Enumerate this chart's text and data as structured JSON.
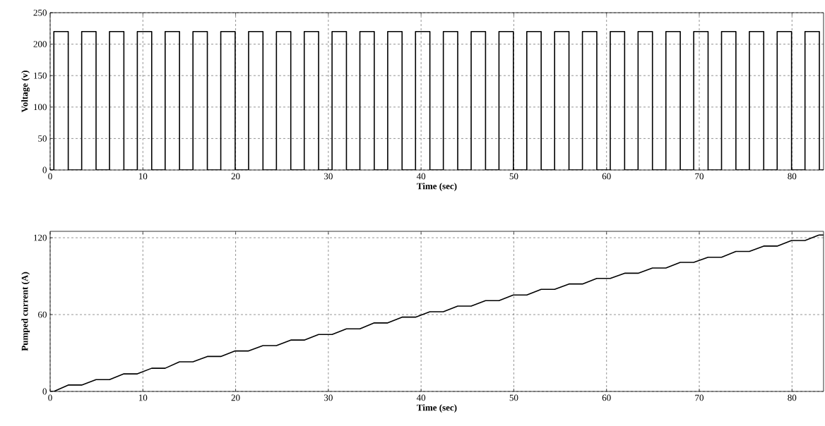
{
  "chart_data": [
    {
      "type": "line",
      "xlabel": "Time (sec)",
      "ylabel": "Voltage (v)",
      "xlim": [
        0,
        83.4
      ],
      "ylim": [
        0,
        250
      ],
      "xticks": [
        0,
        10,
        20,
        30,
        40,
        50,
        60,
        70,
        80
      ],
      "yticks": [
        0,
        50,
        100,
        150,
        200,
        250
      ],
      "grid": true,
      "series": [
        {
          "color": "#000000",
          "x": [
            0,
            0.4,
            0.4,
            1.95,
            1.95,
            3.4,
            3.4,
            4.95,
            4.95,
            6.4,
            6.4,
            7.95,
            7.95,
            9.4,
            9.4,
            10.95,
            10.95,
            12.4,
            12.4,
            13.95,
            13.95,
            15.4,
            15.4,
            16.95,
            16.95,
            18.4,
            18.4,
            19.95,
            19.95,
            21.4,
            21.4,
            22.95,
            22.95,
            24.4,
            24.4,
            25.95,
            25.95,
            27.4,
            27.4,
            28.95,
            28.95,
            30.4,
            30.4,
            31.95,
            31.95,
            33.4,
            33.4,
            34.95,
            34.95,
            36.4,
            36.4,
            37.95,
            37.95,
            39.4,
            39.4,
            40.95,
            40.95,
            42.4,
            42.4,
            43.95,
            43.95,
            45.4,
            45.4,
            46.95,
            46.95,
            48.4,
            48.4,
            49.95,
            49.95,
            51.4,
            51.4,
            52.95,
            52.95,
            54.4,
            54.4,
            55.95,
            55.95,
            57.4,
            57.4,
            58.95,
            58.95,
            60.4,
            60.4,
            61.95,
            61.95,
            63.4,
            63.4,
            64.95,
            64.95,
            66.4,
            66.4,
            67.95,
            67.95,
            69.4,
            69.4,
            70.95,
            70.95,
            72.4,
            72.4,
            73.95,
            73.95,
            75.4,
            75.4,
            76.95,
            76.95,
            78.4,
            78.4,
            79.95,
            79.95,
            81.4,
            81.4,
            82.95,
            82.95,
            83.4
          ],
          "values": [
            0,
            0,
            220,
            220,
            0,
            0,
            220,
            220,
            0,
            0,
            220,
            220,
            0,
            0,
            220,
            220,
            0,
            0,
            220,
            220,
            0,
            0,
            220,
            220,
            0,
            0,
            220,
            220,
            0,
            0,
            220,
            220,
            0,
            0,
            220,
            220,
            0,
            0,
            220,
            220,
            0,
            0,
            220,
            220,
            0,
            0,
            220,
            220,
            0,
            0,
            220,
            220,
            0,
            0,
            220,
            220,
            0,
            0,
            220,
            220,
            0,
            0,
            220,
            220,
            0,
            0,
            220,
            220,
            0,
            0,
            220,
            220,
            0,
            0,
            220,
            220,
            0,
            0,
            220,
            220,
            0,
            0,
            220,
            220,
            0,
            0,
            220,
            220,
            0,
            0,
            220,
            220,
            0,
            0,
            220,
            220,
            0,
            0,
            220,
            220,
            0,
            0,
            220,
            220,
            0,
            0,
            220,
            220,
            0,
            0,
            220,
            220,
            0,
            0
          ]
        }
      ]
    },
    {
      "type": "line",
      "xlabel": "Time (sec)",
      "ylabel": "Pumped current (A)",
      "xlim": [
        0,
        83.4
      ],
      "ylim": [
        0,
        125
      ],
      "xticks": [
        0,
        10,
        20,
        30,
        40,
        50,
        60,
        70,
        80
      ],
      "yticks": [
        0,
        60,
        120
      ],
      "grid": true,
      "series": [
        {
          "color": "#000000",
          "x": [
            0,
            0.4,
            1.95,
            3.4,
            4.95,
            6.4,
            7.95,
            9.4,
            10.95,
            12.4,
            13.95,
            15.4,
            16.95,
            18.4,
            19.95,
            21.4,
            22.95,
            24.4,
            25.95,
            27.4,
            28.95,
            30.4,
            31.95,
            33.4,
            34.95,
            36.4,
            37.95,
            39.4,
            40.95,
            42.4,
            43.95,
            45.4,
            46.95,
            48.4,
            49.95,
            51.4,
            52.95,
            54.4,
            55.95,
            57.4,
            58.95,
            60.4,
            61.95,
            63.4,
            64.95,
            66.4,
            67.95,
            69.4,
            70.95,
            72.4,
            73.95,
            75.4,
            76.95,
            78.4,
            79.95,
            81.4,
            82.95,
            83.4
          ],
          "values": [
            0,
            0,
            5.0,
            5.0,
            9.2,
            9.2,
            13.7,
            13.7,
            18.1,
            18.1,
            23.1,
            23.1,
            27.3,
            27.3,
            31.6,
            31.6,
            35.8,
            35.8,
            40.1,
            40.1,
            44.5,
            44.5,
            48.9,
            48.9,
            53.5,
            53.5,
            58.0,
            58.0,
            62.2,
            62.2,
            66.6,
            66.6,
            70.9,
            70.9,
            75.3,
            75.3,
            79.7,
            79.7,
            83.9,
            83.9,
            88.2,
            88.2,
            92.3,
            92.3,
            96.4,
            96.4,
            100.8,
            100.8,
            104.8,
            104.8,
            109.3,
            109.3,
            113.5,
            113.5,
            117.8,
            117.8,
            122.2,
            122.2
          ]
        }
      ]
    }
  ]
}
